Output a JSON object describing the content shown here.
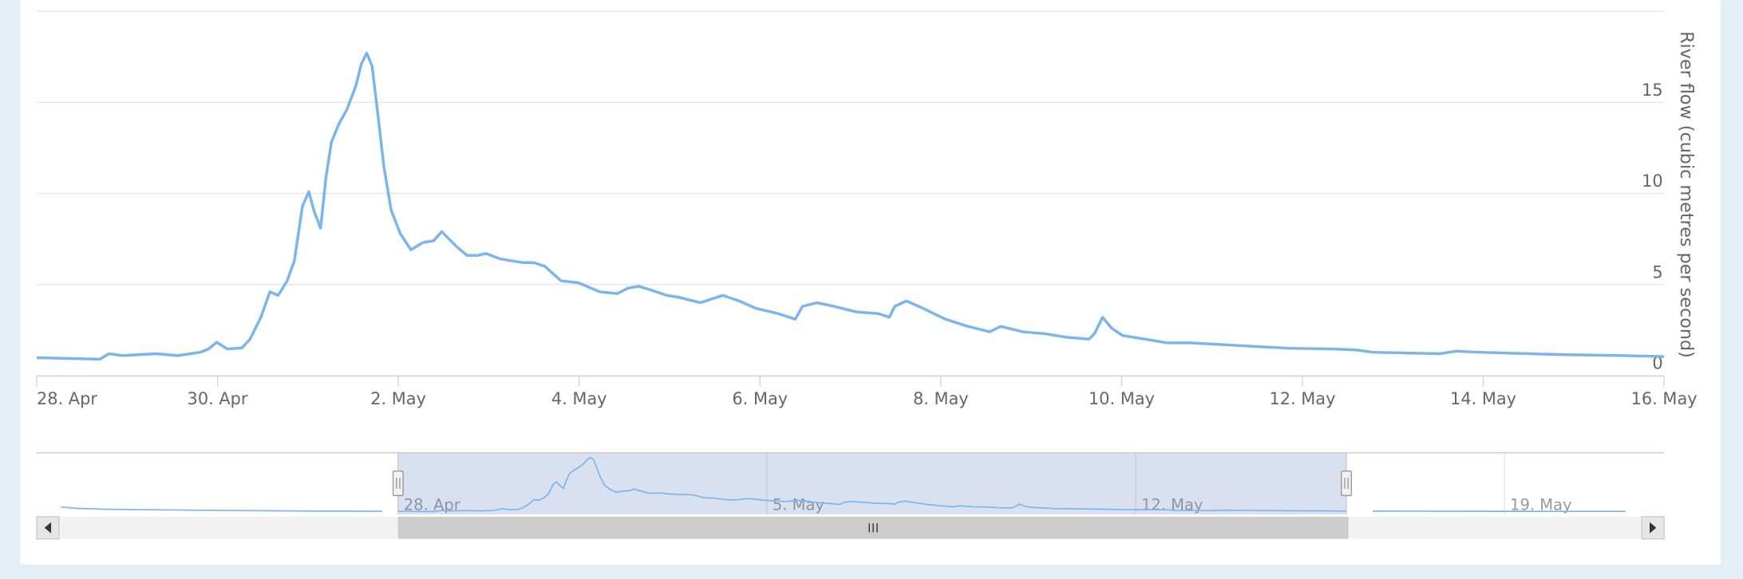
{
  "chart_data": {
    "type": "line",
    "y_axis_title": "River flow (cubic metres per second)",
    "xlim": [
      0,
      18
    ],
    "xticks": [
      {
        "value": 0,
        "label": "28. Apr"
      },
      {
        "value": 2,
        "label": "30. Apr"
      },
      {
        "value": 4,
        "label": "2. May"
      },
      {
        "value": 6,
        "label": "4. May"
      },
      {
        "value": 8,
        "label": "6. May"
      },
      {
        "value": 10,
        "label": "8. May"
      },
      {
        "value": 12,
        "label": "10. May"
      },
      {
        "value": 14,
        "label": "12. May"
      },
      {
        "value": 16,
        "label": "14. May"
      },
      {
        "value": 18,
        "label": "16. May"
      }
    ],
    "ylim": [
      0,
      20
    ],
    "yticks": [
      0,
      5,
      10,
      15
    ],
    "grid": true,
    "color": "#7cb5ec",
    "x": [
      0,
      0.7,
      0.8,
      0.95,
      1.32,
      1.56,
      1.81,
      1.9,
      1.99,
      2.11,
      2.27,
      2.36,
      2.48,
      2.58,
      2.67,
      2.77,
      2.85,
      2.94,
      3.01,
      3.07,
      3.14,
      3.2,
      3.26,
      3.34,
      3.43,
      3.53,
      3.59,
      3.65,
      3.71,
      3.77,
      3.84,
      3.92,
      4.02,
      4.14,
      4.27,
      4.39,
      4.48,
      4.64,
      4.76,
      4.88,
      4.97,
      5.13,
      5.38,
      5.5,
      5.62,
      5.8,
      5.99,
      6.23,
      6.42,
      6.54,
      6.66,
      6.79,
      6.97,
      7.1,
      7.34,
      7.59,
      7.77,
      7.95,
      8.2,
      8.39,
      8.47,
      8.63,
      8.82,
      9.06,
      9.31,
      9.43,
      9.49,
      9.62,
      9.8,
      10.05,
      10.3,
      10.54,
      10.66,
      10.91,
      11.15,
      11.4,
      11.64,
      11.7,
      11.79,
      11.89,
      12.01,
      12.26,
      12.5,
      12.75,
      13.12,
      13.49,
      13.86,
      14.35,
      14.6,
      14.78,
      15.52,
      15.7,
      15.95,
      16.81,
      17.54,
      18
    ],
    "values": [
      0.98,
      0.9,
      1.2,
      1.1,
      1.2,
      1.1,
      1.28,
      1.46,
      1.83,
      1.46,
      1.52,
      2.0,
      3.2,
      4.6,
      4.4,
      5.2,
      6.3,
      9.3,
      10.1,
      9.0,
      8.1,
      10.9,
      12.8,
      13.8,
      14.6,
      15.9,
      17.1,
      17.7,
      17.0,
      14.5,
      11.5,
      9.1,
      7.8,
      6.9,
      7.3,
      7.4,
      7.9,
      7.1,
      6.6,
      6.6,
      6.7,
      6.4,
      6.2,
      6.2,
      6.0,
      5.2,
      5.1,
      4.6,
      4.5,
      4.8,
      4.9,
      4.7,
      4.4,
      4.3,
      4.0,
      4.4,
      4.1,
      3.7,
      3.4,
      3.1,
      3.8,
      4.0,
      3.8,
      3.5,
      3.4,
      3.2,
      3.8,
      4.1,
      3.7,
      3.1,
      2.7,
      2.4,
      2.7,
      2.4,
      2.3,
      2.1,
      2.0,
      2.3,
      3.2,
      2.6,
      2.2,
      2.0,
      1.8,
      1.8,
      1.7,
      1.6,
      1.5,
      1.46,
      1.4,
      1.28,
      1.2,
      1.34,
      1.28,
      1.16,
      1.1,
      1.04
    ],
    "navigator": {
      "xlim": [
        -6.86,
        24.03
      ],
      "ylim": [
        0,
        19
      ],
      "xticks": [
        {
          "value": 0,
          "label": "28. Apr"
        },
        {
          "value": 7,
          "label": "5. May"
        },
        {
          "value": 14,
          "label": "12. May"
        },
        {
          "value": 21,
          "label": "19. May"
        }
      ],
      "x_before": [
        -6.4,
        -6.1,
        -5.5,
        -4.5,
        -3,
        -1.5,
        -0.3
      ],
      "values_before": [
        2.3,
        1.9,
        1.6,
        1.4,
        1.2,
        1.05,
        1.0
      ],
      "x_after": [
        18.5,
        20,
        22,
        23.3
      ],
      "values_after": [
        1.02,
        1.0,
        0.98,
        0.97
      ]
    }
  }
}
